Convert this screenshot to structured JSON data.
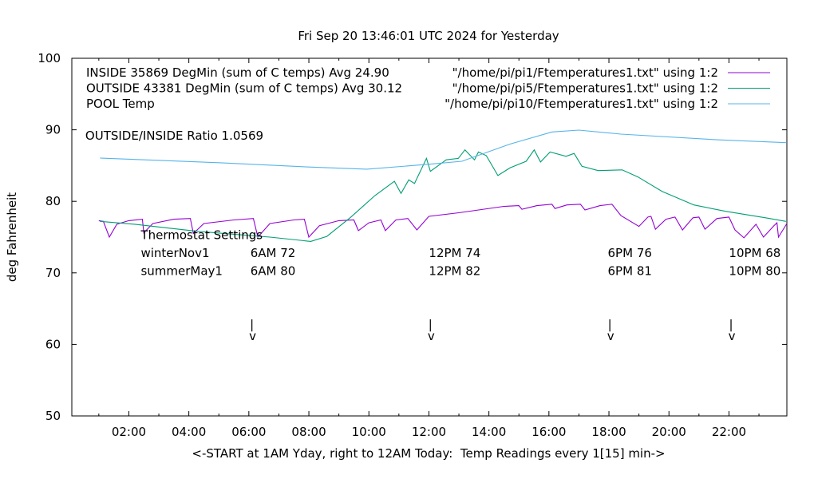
{
  "chart_data": {
    "type": "line",
    "title": "Fri Sep 20 13:46:01 UTC 2024 for Yesterday",
    "xlabel": "<-START at 1AM Yday, right to 12AM Today:  Temp Readings every 1[15] min->",
    "ylabel": "deg Fahrenheit",
    "xlim": [
      0.1,
      23.93
    ],
    "ylim": [
      50,
      100
    ],
    "yticks": [
      50,
      60,
      70,
      80,
      90,
      100
    ],
    "xticks": [
      {
        "h": 2,
        "label": "02:00"
      },
      {
        "h": 4,
        "label": "04:00"
      },
      {
        "h": 6,
        "label": "06:00"
      },
      {
        "h": 8,
        "label": "08:00"
      },
      {
        "h": 10,
        "label": "10:00"
      },
      {
        "h": 12,
        "label": "12:00"
      },
      {
        "h": 14,
        "label": "14:00"
      },
      {
        "h": 16,
        "label": "16:00"
      },
      {
        "h": 18,
        "label": "18:00"
      },
      {
        "h": 20,
        "label": "20:00"
      },
      {
        "h": 22,
        "label": "22:00"
      }
    ],
    "grid": false,
    "legend_placement": "top",
    "series": [
      {
        "name": "INSIDE 35869 DegMin (sum of C temps) Avg 24.90",
        "source": "\"/home/pi/pi1/Ftemperatures1.txt\" using 1:2",
        "color": "#9400d3",
        "points": [
          [
            1.0,
            77.3
          ],
          [
            1.15,
            77.2
          ],
          [
            1.35,
            75.0
          ],
          [
            1.6,
            76.8
          ],
          [
            2.0,
            77.3
          ],
          [
            2.45,
            77.5
          ],
          [
            2.5,
            75.6
          ],
          [
            2.8,
            76.9
          ],
          [
            3.5,
            77.5
          ],
          [
            4.05,
            77.6
          ],
          [
            4.15,
            75.5
          ],
          [
            4.5,
            76.9
          ],
          [
            5.5,
            77.4
          ],
          [
            6.15,
            77.6
          ],
          [
            6.3,
            75.0
          ],
          [
            6.7,
            76.9
          ],
          [
            7.5,
            77.4
          ],
          [
            7.85,
            77.5
          ],
          [
            8.0,
            75.0
          ],
          [
            8.35,
            76.6
          ],
          [
            9.0,
            77.3
          ],
          [
            9.5,
            77.4
          ],
          [
            9.65,
            75.9
          ],
          [
            10.0,
            77.0
          ],
          [
            10.4,
            77.4
          ],
          [
            10.55,
            75.9
          ],
          [
            10.9,
            77.4
          ],
          [
            11.3,
            77.6
          ],
          [
            11.6,
            76.0
          ],
          [
            12.0,
            77.9
          ],
          [
            13.0,
            78.4
          ],
          [
            14.5,
            79.3
          ],
          [
            15.0,
            79.4
          ],
          [
            15.1,
            78.9
          ],
          [
            15.6,
            79.4
          ],
          [
            16.1,
            79.6
          ],
          [
            16.2,
            79.0
          ],
          [
            16.6,
            79.5
          ],
          [
            17.05,
            79.6
          ],
          [
            17.2,
            78.8
          ],
          [
            17.7,
            79.4
          ],
          [
            18.1,
            79.6
          ],
          [
            18.4,
            78.0
          ],
          [
            19.0,
            76.5
          ],
          [
            19.3,
            77.8
          ],
          [
            19.4,
            77.9
          ],
          [
            19.55,
            76.1
          ],
          [
            19.9,
            77.5
          ],
          [
            20.2,
            77.8
          ],
          [
            20.45,
            76.0
          ],
          [
            20.8,
            77.7
          ],
          [
            21.0,
            77.8
          ],
          [
            21.2,
            76.1
          ],
          [
            21.6,
            77.6
          ],
          [
            22.0,
            77.8
          ],
          [
            22.2,
            76.0
          ],
          [
            22.5,
            74.9
          ],
          [
            22.9,
            76.8
          ],
          [
            23.15,
            75.0
          ],
          [
            23.5,
            76.6
          ],
          [
            23.6,
            77.0
          ],
          [
            23.65,
            75.0
          ],
          [
            23.93,
            76.9
          ]
        ]
      },
      {
        "name": "OUTSIDE 43381 DegMin (sum of C temps) Avg 30.12",
        "source": "\"/home/pi/pi5/Ftemperatures1.txt\" using 1:2",
        "color": "#009e73",
        "points": [
          [
            1.04,
            77.2
          ],
          [
            2.2,
            76.8
          ],
          [
            4.3,
            75.8
          ],
          [
            6.7,
            75.0
          ],
          [
            8.06,
            74.4
          ],
          [
            8.6,
            75.1
          ],
          [
            9.4,
            77.8
          ],
          [
            10.2,
            80.8
          ],
          [
            10.85,
            82.8
          ],
          [
            11.07,
            81.1
          ],
          [
            11.33,
            83.0
          ],
          [
            11.52,
            82.5
          ],
          [
            11.92,
            86.0
          ],
          [
            12.05,
            84.2
          ],
          [
            12.58,
            85.8
          ],
          [
            12.98,
            86.0
          ],
          [
            13.2,
            87.2
          ],
          [
            13.52,
            85.8
          ],
          [
            13.65,
            86.9
          ],
          [
            13.91,
            86.4
          ],
          [
            14.3,
            83.6
          ],
          [
            14.71,
            84.7
          ],
          [
            15.24,
            85.6
          ],
          [
            15.51,
            87.2
          ],
          [
            15.72,
            85.5
          ],
          [
            16.04,
            86.9
          ],
          [
            16.57,
            86.3
          ],
          [
            16.84,
            86.7
          ],
          [
            17.1,
            84.9
          ],
          [
            17.64,
            84.3
          ],
          [
            18.44,
            84.4
          ],
          [
            18.97,
            83.4
          ],
          [
            19.77,
            81.4
          ],
          [
            20.83,
            79.5
          ],
          [
            21.89,
            78.6
          ],
          [
            23.22,
            77.7
          ],
          [
            23.9,
            77.2
          ]
        ]
      },
      {
        "name": "POOL Temp",
        "source": "\"/home/pi/pi10/Ftemperatures1.txt\" using 1:2",
        "color": "#56b4e9",
        "points": [
          [
            1.04,
            86.05
          ],
          [
            5.0,
            85.4
          ],
          [
            8.0,
            84.8
          ],
          [
            9.93,
            84.5
          ],
          [
            12.05,
            85.2
          ],
          [
            13.1,
            85.6
          ],
          [
            14.7,
            88.0
          ],
          [
            16.1,
            89.7
          ],
          [
            17.0,
            89.95
          ],
          [
            18.4,
            89.4
          ],
          [
            21.6,
            88.6
          ],
          [
            23.9,
            88.2
          ]
        ]
      }
    ],
    "annotations": {
      "ratio": {
        "text": "OUTSIDE/INSIDE Ratio 1.0569",
        "h": 0.55,
        "t": 88.6
      },
      "thermostat_title": {
        "text": "Thermostat Settings",
        "h": 2.4,
        "t": 74.7
      },
      "rows": [
        {
          "label": "winterNov1",
          "t": 72.2,
          "settings": [
            {
              "h": 6.05,
              "text": "6AM 72"
            },
            {
              "h": 12.0,
              "text": "12PM 74"
            },
            {
              "h": 17.96,
              "text": "6PM 76"
            },
            {
              "h": 22.0,
              "text": "10PM 68"
            }
          ]
        },
        {
          "label": "summerMay1",
          "t": 69.7,
          "settings": [
            {
              "h": 6.05,
              "text": "6AM 80"
            },
            {
              "h": 12.0,
              "text": "12PM 82"
            },
            {
              "h": 17.96,
              "text": "6PM 81"
            },
            {
              "h": 22.0,
              "text": "10PM 80"
            }
          ]
        }
      ],
      "row_label_h": 2.4,
      "arrows": [
        {
          "h": 6.1
        },
        {
          "h": 12.05
        },
        {
          "h": 18.03
        },
        {
          "h": 22.07
        }
      ],
      "arrow_stem": "|",
      "arrow_head": "v"
    }
  }
}
